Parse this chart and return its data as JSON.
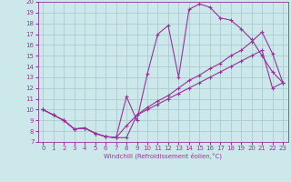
{
  "xlabel": "Windchill (Refroidissement éolien,°C)",
  "bg_color": "#cce8ea",
  "grid_color": "#aaccd0",
  "line_color": "#993399",
  "xlim": [
    -0.5,
    23.5
  ],
  "ylim": [
    7,
    20
  ],
  "xticks": [
    0,
    1,
    2,
    3,
    4,
    5,
    6,
    7,
    8,
    9,
    10,
    11,
    12,
    13,
    14,
    15,
    16,
    17,
    18,
    19,
    20,
    21,
    22,
    23
  ],
  "yticks": [
    7,
    8,
    9,
    10,
    11,
    12,
    13,
    14,
    15,
    16,
    17,
    18,
    19,
    20
  ],
  "line1_x": [
    0,
    1,
    2,
    3,
    4,
    5,
    6,
    7,
    8,
    9,
    10,
    11,
    12,
    13,
    14,
    15,
    16,
    17,
    18,
    19,
    20,
    21,
    22,
    23
  ],
  "line1_y": [
    10.0,
    9.5,
    9.0,
    8.2,
    8.3,
    7.8,
    7.5,
    7.4,
    7.4,
    9.5,
    10.0,
    10.5,
    11.0,
    11.5,
    12.0,
    12.5,
    13.0,
    13.5,
    14.0,
    14.5,
    15.0,
    15.5,
    12.0,
    12.5
  ],
  "line2_x": [
    0,
    1,
    2,
    3,
    4,
    5,
    6,
    7,
    8,
    9,
    10,
    11,
    12,
    13,
    14,
    15,
    16,
    17,
    18,
    19,
    20,
    21,
    22,
    23
  ],
  "line2_y": [
    10.0,
    9.5,
    9.0,
    8.2,
    8.3,
    7.8,
    7.5,
    7.4,
    11.2,
    9.0,
    13.3,
    17.0,
    17.8,
    13.0,
    19.3,
    19.8,
    19.5,
    18.5,
    18.3,
    17.5,
    16.5,
    15.0,
    13.5,
    12.5
  ],
  "line3_x": [
    0,
    1,
    2,
    3,
    4,
    5,
    6,
    7,
    8,
    9,
    10,
    11,
    12,
    13,
    14,
    15,
    16,
    17,
    18,
    19,
    20,
    21,
    22,
    23
  ],
  "line3_y": [
    10.0,
    9.5,
    9.0,
    8.2,
    8.3,
    7.8,
    7.5,
    7.4,
    8.5,
    9.5,
    10.2,
    10.8,
    11.3,
    12.0,
    12.7,
    13.2,
    13.8,
    14.3,
    15.0,
    15.5,
    16.3,
    17.2,
    15.2,
    12.5
  ]
}
